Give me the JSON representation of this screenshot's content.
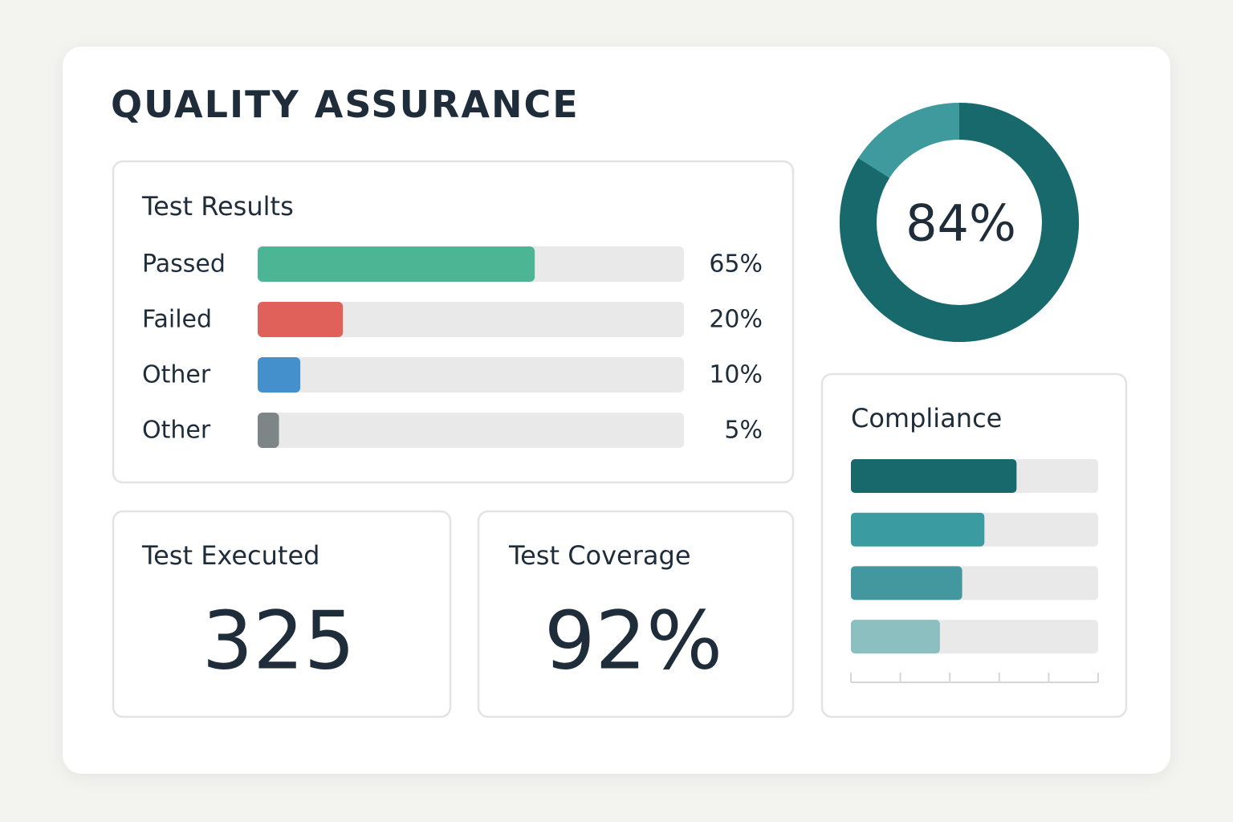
{
  "header": {
    "title": "QUALITY ASSURANCE"
  },
  "test_results": {
    "title": "Test Results",
    "xlim": [
      0,
      100
    ],
    "track_color": "#e9e9e9",
    "rows": [
      {
        "label": "Passed",
        "value": 65,
        "value_label": "65%",
        "color": "#4cb594"
      },
      {
        "label": "Failed",
        "value": 20,
        "value_label": "20%",
        "color": "#e0605a"
      },
      {
        "label": "Other",
        "value": 10,
        "value_label": "10%",
        "color": "#4390cc"
      },
      {
        "label": "Other",
        "value": 5,
        "value_label": "5%",
        "color": "#7d8587"
      }
    ]
  },
  "pass_rate": {
    "value": 84,
    "value_label": "84%",
    "color": "#17696b",
    "track_color": "#3f9a9e"
  },
  "test_executed": {
    "title": "Test Executed",
    "value": 325
  },
  "test_coverage": {
    "title": "Test Coverage",
    "value": 92,
    "value_label": "92%"
  },
  "compliance": {
    "title": "Compliance",
    "xlim": [
      0,
      100
    ],
    "xticks": [
      0,
      20,
      40,
      60,
      80,
      100
    ],
    "track_color": "#e9e9e9",
    "bars": [
      {
        "value": 67,
        "color": "#17696b"
      },
      {
        "value": 54,
        "color": "#3a9ba0"
      },
      {
        "value": 45,
        "color": "#43989f"
      },
      {
        "value": 36,
        "color": "#8bbfc0"
      }
    ]
  }
}
